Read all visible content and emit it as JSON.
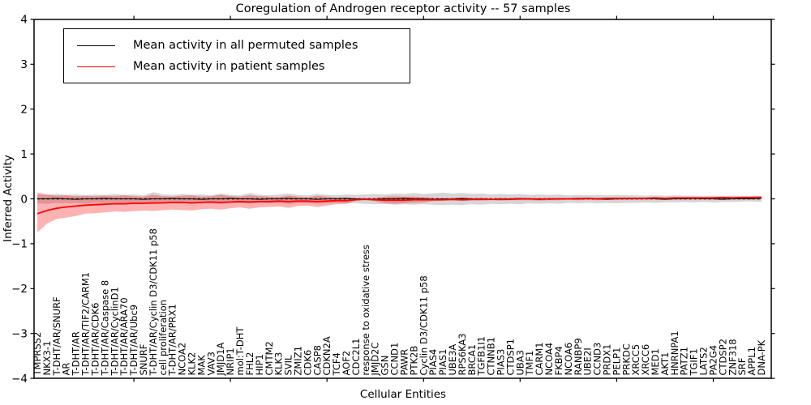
{
  "title": "Coregulation of Androgen receptor activity -- 57 samples",
  "axes": {
    "xlabel": "Cellular Entities",
    "ylabel": "Inferred Activity",
    "yticks": [
      "4",
      "3",
      "2",
      "1",
      "0",
      "−1",
      "−2",
      "−3",
      "−4"
    ],
    "ylim": [
      -4,
      4
    ]
  },
  "legend": {
    "items": [
      {
        "label": "Mean activity in all permuted samples",
        "color": "#000000"
      },
      {
        "label": "Mean activity in patient samples",
        "color": "#ff0000"
      }
    ]
  },
  "colors": {
    "frame": "#000000",
    "permuted_line": "#000000",
    "patient_line": "#ff0000",
    "permuted_band": "#000000",
    "patient_band": "#ff0000",
    "background": "#ffffff"
  },
  "chart_data": {
    "type": "line",
    "title": "Coregulation of Androgen receptor activity -- 57 samples",
    "xlabel": "Cellular Entities",
    "ylabel": "Inferred Activity",
    "ylim": [
      -4,
      4
    ],
    "grid": false,
    "legend_position": "upper left",
    "categories": [
      "TMPRSS2",
      "NKX3-1",
      "T-DHT/AR/SNURF",
      "AR",
      "T-DHT/AR",
      "T-DHT/AR/TIF2/CARM1",
      "T-DHT/AR/CDK6",
      "T-DHT/AR/Caspase 8",
      "T-DHT/AR/CyclinD1",
      "T-DHT/AR/ARA70",
      "T-DHT/AR/Ubc9",
      "SNURF",
      "T-DHT/AR/Cyclin D3/CDK11 p58",
      "cell proliferation",
      "T-DHT/AR/PRX1",
      "NCOA2",
      "KLK2",
      "MAK",
      "VAV3",
      "JMJD1A",
      "NRIP1",
      "mol:T-DHT",
      "FHL2",
      "HIP1",
      "CMTM2",
      "KLK3",
      "SVIL",
      "ZMIZ1",
      "CDK6",
      "CASP8",
      "CDKN2A",
      "TCF4",
      "AOF2",
      "CDC2L1",
      "response to oxidative stress",
      "JMJD2C",
      "GSN",
      "CCND1",
      "PAWR",
      "PTK2B",
      "Cyclin D3/CDK11 p58",
      "PIAS4",
      "PIAS1",
      "UBE3A",
      "RPS6KA3",
      "BRCA1",
      "TGFB1I1",
      "CTNNB1",
      "PIAS3",
      "CTDSP1",
      "UBA3",
      "TMF1",
      "CARM1",
      "NCOA4",
      "FKBP4",
      "NCOA6",
      "RANBP9",
      "UBE2I",
      "CCND3",
      "PRDX1",
      "PELP1",
      "PRKDC",
      "XRCC5",
      "XRCC6",
      "MED1",
      "AKT1",
      "HNRNPA1",
      "PATZ1",
      "TGIF1",
      "LATS2",
      "PA2G4",
      "CTDSP2",
      "ZNF318",
      "SRF",
      "APPL1",
      "DNA-PK"
    ],
    "series": [
      {
        "id": "permuted",
        "name": "Mean activity in all permuted samples",
        "color": "#000000",
        "values": [
          0,
          0,
          0.01,
          0,
          -0.01,
          0,
          0,
          0.01,
          0,
          0,
          0,
          -0.01,
          0,
          0,
          0.01,
          0,
          0,
          -0.01,
          0,
          0,
          0.01,
          0,
          0,
          -0.01,
          0,
          0,
          0.01,
          0,
          0,
          -0.01,
          0,
          0,
          0.01,
          0,
          0,
          -0.01,
          0,
          0,
          0.01,
          0,
          0,
          -0.01,
          0,
          0,
          0.01,
          0,
          0,
          -0.01,
          0,
          0,
          0.01,
          0,
          0,
          -0.01,
          0,
          0,
          0.01,
          0,
          0,
          -0.01,
          0,
          0,
          0.01,
          0,
          0,
          -0.01,
          0,
          0,
          0.01,
          0,
          0,
          -0.01,
          0,
          0,
          0,
          0.01
        ]
      },
      {
        "id": "patient",
        "name": "Mean activity in patient samples",
        "color": "#ff0000",
        "values": [
          -0.33,
          -0.26,
          -0.21,
          -0.18,
          -0.16,
          -0.14,
          -0.13,
          -0.12,
          -0.11,
          -0.11,
          -0.1,
          -0.1,
          -0.09,
          -0.09,
          -0.08,
          -0.08,
          -0.09,
          -0.08,
          -0.07,
          -0.08,
          -0.07,
          -0.06,
          -0.07,
          -0.06,
          -0.06,
          -0.05,
          -0.06,
          -0.05,
          -0.05,
          -0.06,
          -0.05,
          -0.04,
          -0.04,
          -0.02,
          -0.01,
          -0.02,
          -0.03,
          -0.03,
          -0.03,
          -0.02,
          -0.02,
          -0.02,
          -0.02,
          -0.01,
          -0.02,
          -0.01,
          -0.01,
          -0.01,
          -0.01,
          -0.01,
          0,
          0,
          -0.01,
          0,
          0,
          0,
          0,
          0.01,
          0,
          0.01,
          0.01,
          0.01,
          0.01,
          0.01,
          0.02,
          0.01,
          0.02,
          0.02,
          0.02,
          0.02,
          0.02,
          0.03,
          0.02,
          0.03,
          0.03,
          0.03
        ]
      }
    ],
    "bands": [
      {
        "id": "permuted-range",
        "name": "permuted samples activity range",
        "color": "#000000",
        "opacity": 0.16,
        "upper": [
          0.1,
          0.09,
          0.11,
          0.09,
          0.1,
          0.08,
          0.1,
          0.09,
          0.11,
          0.09,
          0.1,
          0.08,
          0.15,
          0.1,
          0.09,
          0.11,
          0.09,
          0.1,
          0.08,
          0.12,
          0.09,
          0.08,
          0.13,
          0.09,
          0.08,
          0.1,
          0.12,
          0.09,
          0.08,
          0.11,
          0.09,
          0.08,
          0.1,
          0.09,
          0.1,
          0.11,
          0.1,
          0.12,
          0.11,
          0.13,
          0.11,
          0.12,
          0.14,
          0.12,
          0.13,
          0.11,
          0.12,
          0.1,
          0.11,
          0.1,
          0.11,
          0.09,
          0.1,
          0.09,
          0.1,
          0.08,
          0.09,
          0.08,
          0.09,
          0.08,
          0.09,
          0.08,
          0.08,
          0.07,
          0.08,
          0.07,
          0.08,
          0.07,
          0.07,
          0.06,
          0.07,
          0.06,
          0.07,
          0.06,
          0.06,
          0.07
        ],
        "lower": [
          -0.1,
          -0.11,
          -0.09,
          -0.1,
          -0.09,
          -0.11,
          -0.09,
          -0.1,
          -0.09,
          -0.11,
          -0.09,
          -0.1,
          -0.12,
          -0.09,
          -0.1,
          -0.09,
          -0.11,
          -0.09,
          -0.1,
          -0.11,
          -0.09,
          -0.1,
          -0.11,
          -0.09,
          -0.1,
          -0.09,
          -0.12,
          -0.09,
          -0.1,
          -0.11,
          -0.1,
          -0.09,
          -0.1,
          -0.1,
          -0.11,
          -0.12,
          -0.11,
          -0.13,
          -0.12,
          -0.13,
          -0.12,
          -0.13,
          -0.14,
          -0.13,
          -0.14,
          -0.12,
          -0.13,
          -0.11,
          -0.12,
          -0.11,
          -0.12,
          -0.1,
          -0.11,
          -0.1,
          -0.11,
          -0.09,
          -0.1,
          -0.09,
          -0.1,
          -0.09,
          -0.1,
          -0.09,
          -0.09,
          -0.08,
          -0.09,
          -0.08,
          -0.08,
          -0.07,
          -0.08,
          -0.07,
          -0.08,
          -0.07,
          -0.07,
          -0.06,
          -0.06,
          -0.07
        ]
      },
      {
        "id": "patient-range",
        "name": "patient samples activity range",
        "color": "#ff0000",
        "opacity": 0.3,
        "upper": [
          0.14,
          0.1,
          0.07,
          0.08,
          0.06,
          0.07,
          0.06,
          0.07,
          0.06,
          0.08,
          0.06,
          0.05,
          0.09,
          0.06,
          0.05,
          0.07,
          0.08,
          0.05,
          0.06,
          0.09,
          0.06,
          0.05,
          0.08,
          0.06,
          0.05,
          0.04,
          0.07,
          0.05,
          0.04,
          0.07,
          0.05,
          0.03,
          0.03,
          0.01,
          0.01,
          0.02,
          0.05,
          0.06,
          0.05,
          0.05,
          0.04,
          0.02,
          0.01,
          0.01,
          0.02,
          0.01,
          0.02,
          0.01,
          0.02,
          0.01,
          0.02,
          0.02,
          0.02,
          0.02,
          0.02,
          0.02,
          0.03,
          0.03,
          0.02,
          0.03,
          0.03,
          0.03,
          0.03,
          0.03,
          0.04,
          0.03,
          0.04,
          0.04,
          0.04,
          0.04,
          0.04,
          0.05,
          0.04,
          0.05,
          0.05,
          0.06
        ],
        "lower": [
          -0.75,
          -0.55,
          -0.45,
          -0.42,
          -0.38,
          -0.33,
          -0.32,
          -0.3,
          -0.28,
          -0.29,
          -0.27,
          -0.26,
          -0.27,
          -0.25,
          -0.24,
          -0.25,
          -0.26,
          -0.23,
          -0.22,
          -0.24,
          -0.21,
          -0.19,
          -0.22,
          -0.19,
          -0.18,
          -0.17,
          -0.2,
          -0.16,
          -0.15,
          -0.18,
          -0.15,
          -0.12,
          -0.11,
          -0.04,
          -0.02,
          -0.06,
          -0.1,
          -0.11,
          -0.1,
          -0.09,
          -0.08,
          -0.05,
          -0.04,
          -0.04,
          -0.05,
          -0.04,
          -0.04,
          -0.03,
          -0.04,
          -0.03,
          -0.03,
          -0.03,
          -0.04,
          -0.03,
          -0.03,
          -0.02,
          -0.03,
          -0.02,
          -0.03,
          -0.02,
          -0.02,
          -0.02,
          -0.02,
          -0.01,
          -0.01,
          -0.02,
          -0.01,
          -0.01,
          -0.01,
          -0.01,
          -0.01,
          0,
          -0.01,
          0,
          0,
          0
        ]
      }
    ]
  }
}
